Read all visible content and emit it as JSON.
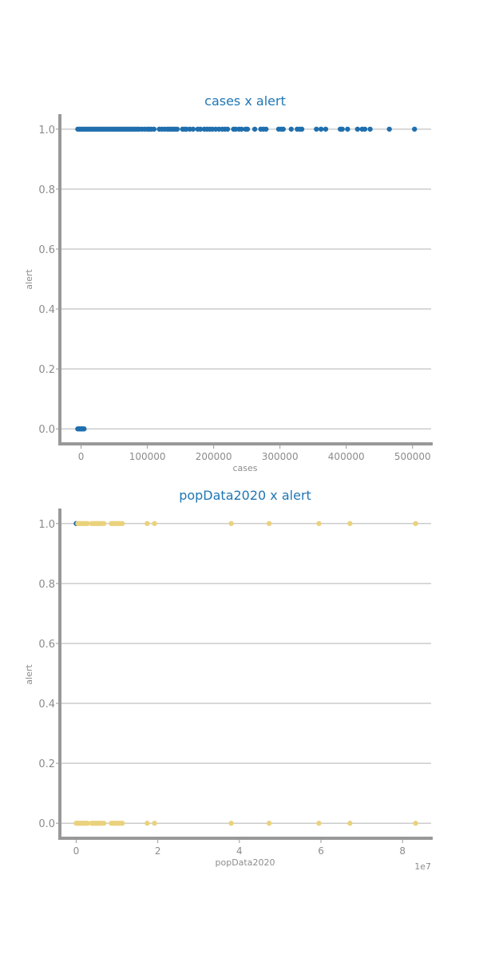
{
  "colors": {
    "series_blue": "#1f6fae",
    "series_yellow": "#ead27d",
    "title": "#1f77b4",
    "text": "#8c8c8c",
    "grid": "#cccccc",
    "spine": "#999999"
  },
  "chart_data": [
    {
      "type": "scatter",
      "title": "cases x alert",
      "xlabel": "cases",
      "ylabel": "alert",
      "xlim": [
        -32000,
        528000
      ],
      "ylim": [
        -0.05,
        1.05
      ],
      "x_ticks": [
        0,
        100000,
        200000,
        300000,
        400000,
        500000
      ],
      "x_tick_labels": [
        "0",
        "100000",
        "200000",
        "300000",
        "400000",
        "500000"
      ],
      "y_ticks": [
        0.0,
        0.2,
        0.4,
        0.6,
        0.8,
        1.0
      ],
      "y_tick_labels": [
        "0.0",
        "0.2",
        "0.4",
        "0.6",
        "0.8",
        "1.0"
      ],
      "x_offset_label": "",
      "grid": "y",
      "series": [
        {
          "color": "#1f6fae",
          "points": [
            [
              -5000,
              0
            ],
            [
              -3000,
              0
            ],
            [
              -1500,
              0
            ],
            [
              0,
              0
            ],
            [
              1500,
              0
            ],
            [
              3000,
              0
            ],
            [
              4500,
              0
            ],
            [
              -5000,
              1
            ],
            [
              -2000,
              1
            ],
            [
              1000,
              1
            ],
            [
              4000,
              1
            ],
            [
              7000,
              1
            ],
            [
              10000,
              1
            ],
            [
              13000,
              1
            ],
            [
              16000,
              1
            ],
            [
              19000,
              1
            ],
            [
              22000,
              1
            ],
            [
              25000,
              1
            ],
            [
              28000,
              1
            ],
            [
              31000,
              1
            ],
            [
              34000,
              1
            ],
            [
              37000,
              1
            ],
            [
              40000,
              1
            ],
            [
              43000,
              1
            ],
            [
              46000,
              1
            ],
            [
              49000,
              1
            ],
            [
              52000,
              1
            ],
            [
              55000,
              1
            ],
            [
              58000,
              1
            ],
            [
              61000,
              1
            ],
            [
              64000,
              1
            ],
            [
              67000,
              1
            ],
            [
              70000,
              1
            ],
            [
              73000,
              1
            ],
            [
              76000,
              1
            ],
            [
              79000,
              1
            ],
            [
              82000,
              1
            ],
            [
              85000,
              1
            ],
            [
              88000,
              1
            ],
            [
              92000,
              1
            ],
            [
              96000,
              1
            ],
            [
              100000,
              1
            ],
            [
              103000,
              1
            ],
            [
              106000,
              1
            ],
            [
              110000,
              1
            ],
            [
              118000,
              1
            ],
            [
              122000,
              1
            ],
            [
              126000,
              1
            ],
            [
              130000,
              1
            ],
            [
              133000,
              1
            ],
            [
              136000,
              1
            ],
            [
              139000,
              1
            ],
            [
              142000,
              1
            ],
            [
              145000,
              1
            ],
            [
              153000,
              1
            ],
            [
              156000,
              1
            ],
            [
              159000,
              1
            ],
            [
              164000,
              1
            ],
            [
              169000,
              1
            ],
            [
              176000,
              1
            ],
            [
              180000,
              1
            ],
            [
              186000,
              1
            ],
            [
              190000,
              1
            ],
            [
              194000,
              1
            ],
            [
              198000,
              1
            ],
            [
              203000,
              1
            ],
            [
              208000,
              1
            ],
            [
              213000,
              1
            ],
            [
              217000,
              1
            ],
            [
              221000,
              1
            ],
            [
              230000,
              1
            ],
            [
              233000,
              1
            ],
            [
              238000,
              1
            ],
            [
              242000,
              1
            ],
            [
              248000,
              1
            ],
            [
              251000,
              1
            ],
            [
              262000,
              1
            ],
            [
              271000,
              1
            ],
            [
              275000,
              1
            ],
            [
              279000,
              1
            ],
            [
              298000,
              1
            ],
            [
              302000,
              1
            ],
            [
              305000,
              1
            ],
            [
              317000,
              1
            ],
            [
              326000,
              1
            ],
            [
              330000,
              1
            ],
            [
              333000,
              1
            ],
            [
              355000,
              1
            ],
            [
              362000,
              1
            ],
            [
              369000,
              1
            ],
            [
              391000,
              1
            ],
            [
              394000,
              1
            ],
            [
              402000,
              1
            ],
            [
              417000,
              1
            ],
            [
              424000,
              1
            ],
            [
              428000,
              1
            ],
            [
              436000,
              1
            ],
            [
              465000,
              1
            ],
            [
              503000,
              1
            ]
          ]
        }
      ]
    },
    {
      "type": "scatter",
      "title": "popData2020 x alert",
      "xlabel": "popData2020",
      "ylabel": "alert",
      "xlim": [
        -4000000,
        87000000
      ],
      "ylim": [
        -0.05,
        1.05
      ],
      "x_ticks": [
        0,
        20000000,
        40000000,
        60000000,
        80000000
      ],
      "x_tick_labels": [
        "0",
        "2",
        "4",
        "6",
        "8"
      ],
      "y_ticks": [
        0.0,
        0.2,
        0.4,
        0.6,
        0.8,
        1.0
      ],
      "y_tick_labels": [
        "0.0",
        "0.2",
        "0.4",
        "0.6",
        "0.8",
        "1.0"
      ],
      "x_offset_label": "1e7",
      "grid": "y",
      "series": [
        {
          "color": "#1f6fae",
          "points": [
            [
              0,
              1
            ]
          ]
        },
        {
          "color": "#ead27d",
          "points": [
            [
              0,
              0
            ],
            [
              400000,
              0
            ],
            [
              800000,
              0
            ],
            [
              1200000,
              0
            ],
            [
              1600000,
              0
            ],
            [
              2000000,
              0
            ],
            [
              2400000,
              0
            ],
            [
              2800000,
              0
            ],
            [
              3800000,
              0
            ],
            [
              4200000,
              0
            ],
            [
              4600000,
              0
            ],
            [
              5000000,
              0
            ],
            [
              5400000,
              0
            ],
            [
              5800000,
              0
            ],
            [
              6200000,
              0
            ],
            [
              6800000,
              0
            ],
            [
              8600000,
              0
            ],
            [
              9000000,
              0
            ],
            [
              9400000,
              0
            ],
            [
              9800000,
              0
            ],
            [
              10300000,
              0
            ],
            [
              10700000,
              0
            ],
            [
              11300000,
              0
            ],
            [
              17400000,
              0
            ],
            [
              19200000,
              0
            ],
            [
              38000000,
              0
            ],
            [
              47300000,
              0
            ],
            [
              59500000,
              0
            ],
            [
              67100000,
              0
            ],
            [
              83200000,
              0
            ],
            [
              400000,
              1
            ],
            [
              800000,
              1
            ],
            [
              1200000,
              1
            ],
            [
              1600000,
              1
            ],
            [
              2000000,
              1
            ],
            [
              2400000,
              1
            ],
            [
              2800000,
              1
            ],
            [
              3800000,
              1
            ],
            [
              4200000,
              1
            ],
            [
              4600000,
              1
            ],
            [
              5000000,
              1
            ],
            [
              5400000,
              1
            ],
            [
              5800000,
              1
            ],
            [
              6200000,
              1
            ],
            [
              6800000,
              1
            ],
            [
              8600000,
              1
            ],
            [
              9000000,
              1
            ],
            [
              9400000,
              1
            ],
            [
              9800000,
              1
            ],
            [
              10300000,
              1
            ],
            [
              10700000,
              1
            ],
            [
              11300000,
              1
            ],
            [
              17400000,
              1
            ],
            [
              19200000,
              1
            ],
            [
              38000000,
              1
            ],
            [
              47300000,
              1
            ],
            [
              59500000,
              1
            ],
            [
              67100000,
              1
            ],
            [
              83200000,
              1
            ]
          ]
        }
      ]
    }
  ]
}
